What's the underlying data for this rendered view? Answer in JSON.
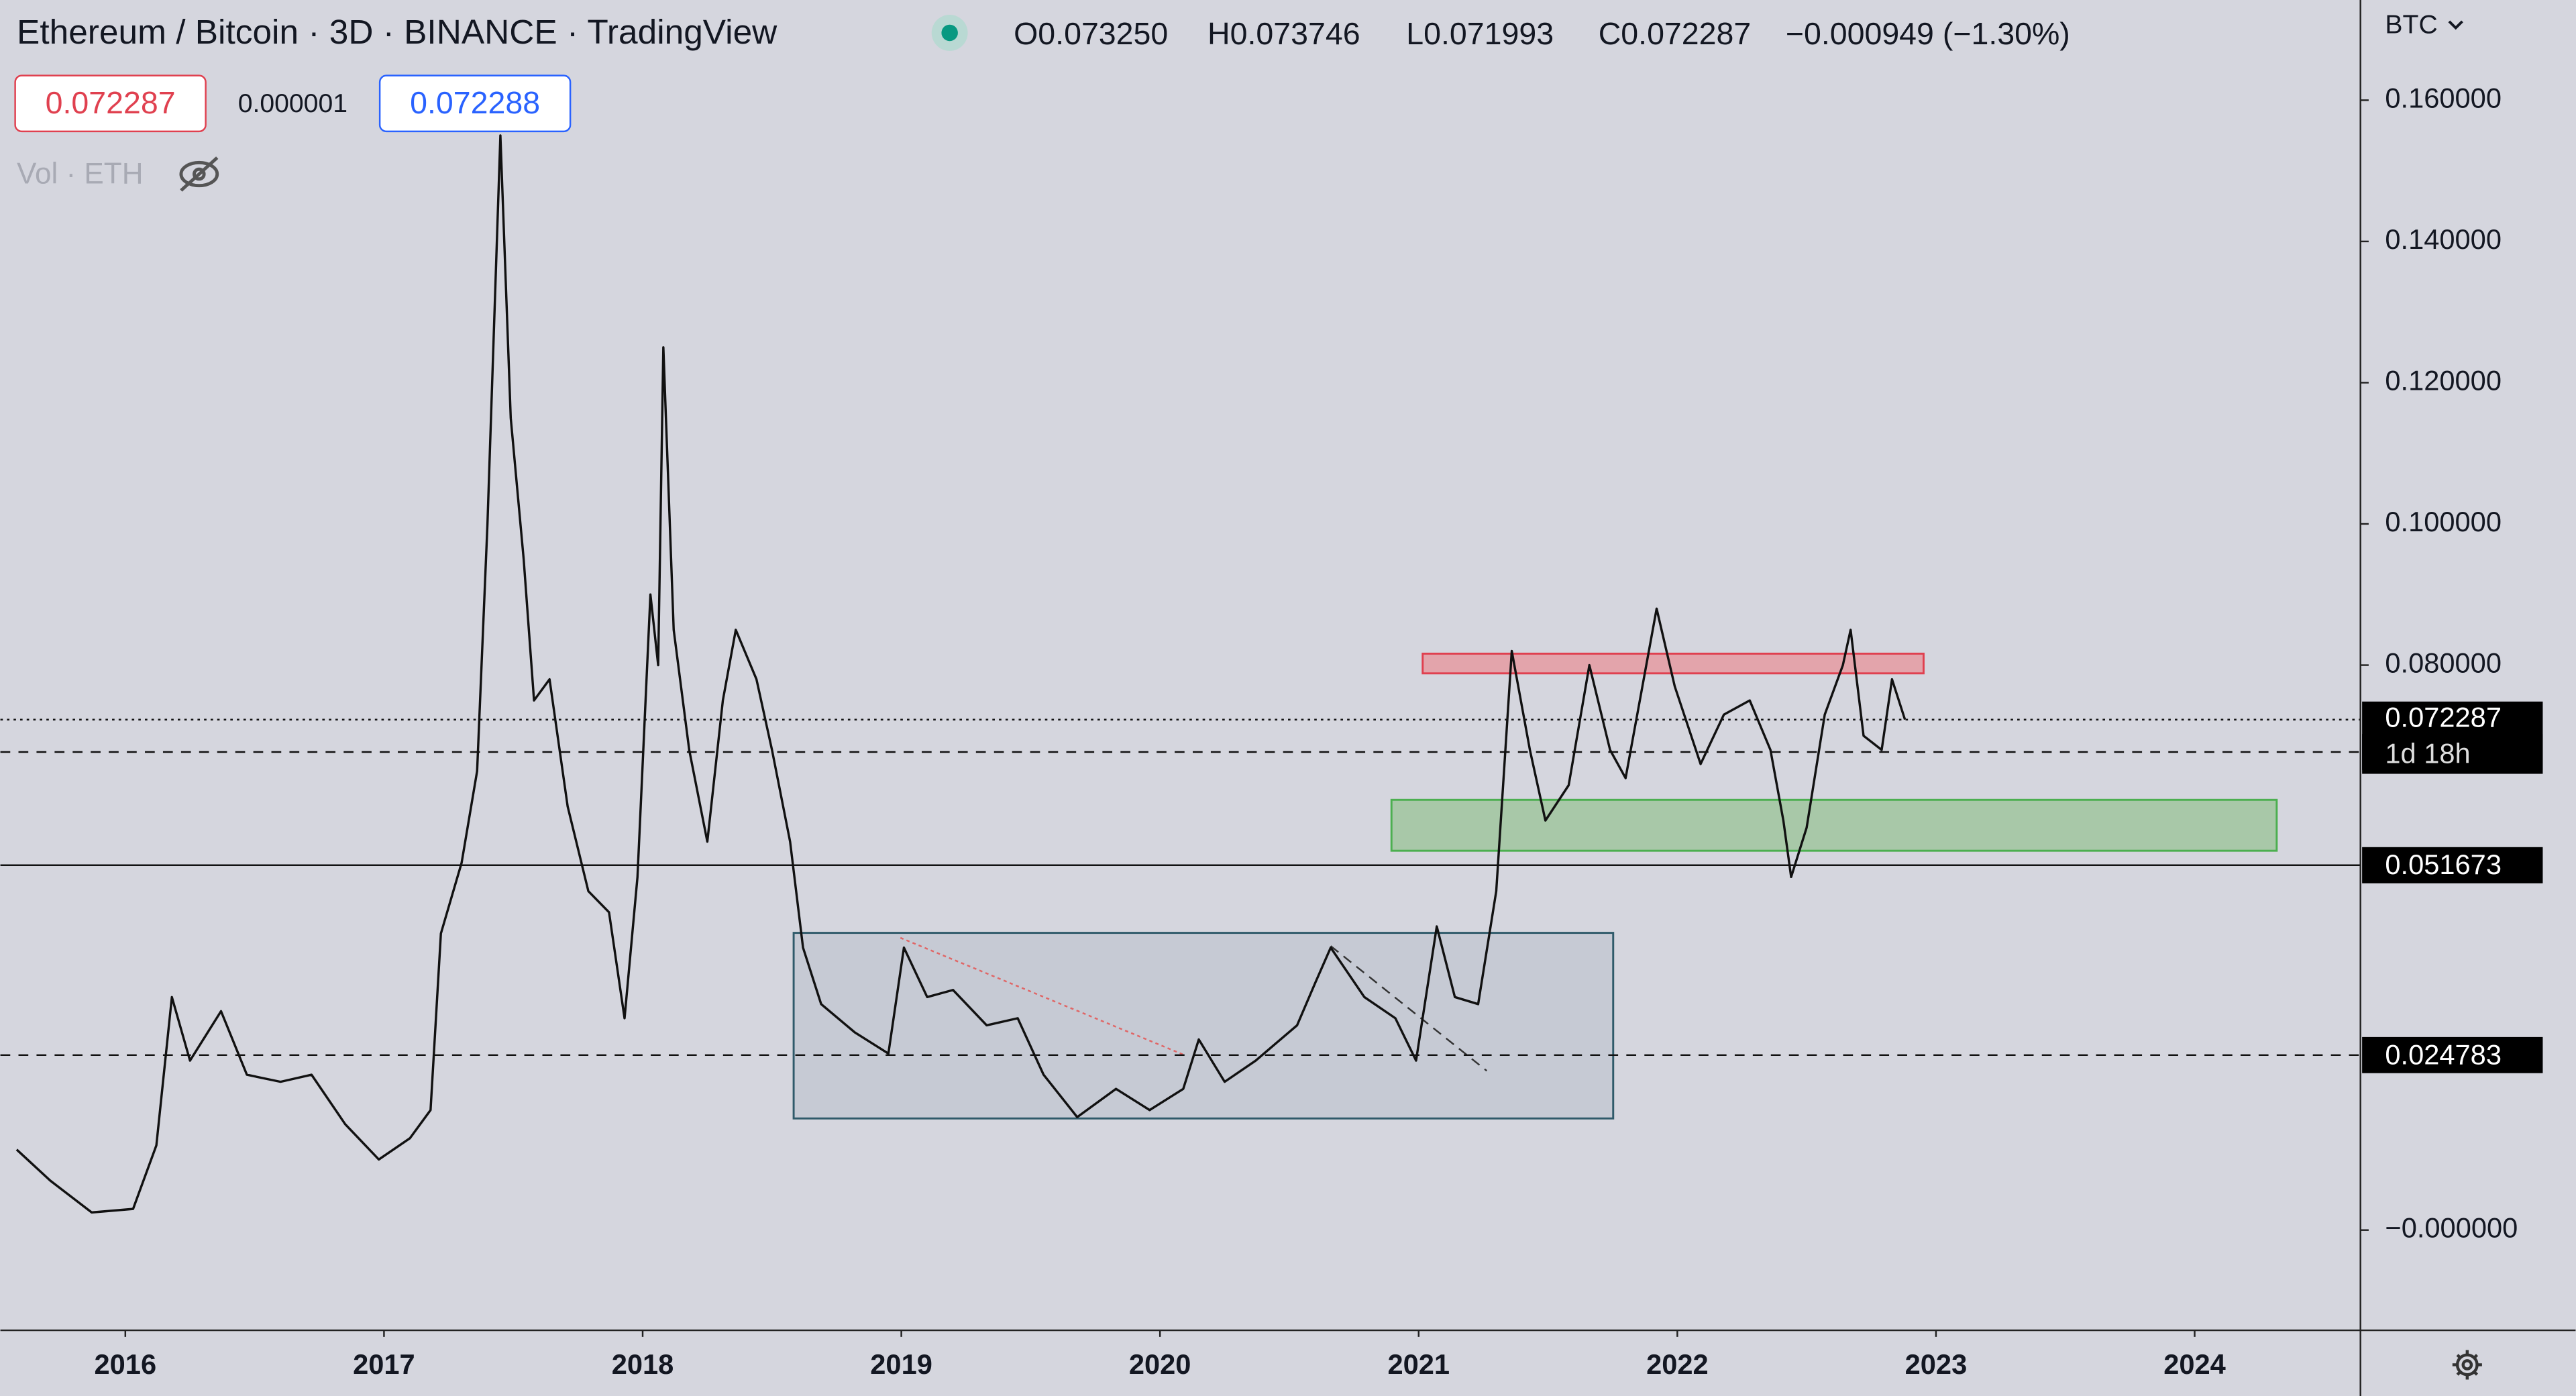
{
  "chart_data": {
    "type": "line",
    "title": "Ethereum / Bitcoin · 3D · BINANCE · TradingView",
    "ohlc": {
      "open": "O0.073250",
      "high": "H0.073746",
      "low": "L0.071993",
      "close": "C0.072287",
      "change": "−0.000949 (−1.30%)"
    },
    "order_panel": {
      "sell": "0.072287",
      "spread": "0.000001",
      "buy": "0.072288"
    },
    "volume_label": "Vol · ETH",
    "currency": "BTC",
    "xlim": [
      2015.517,
      2024.641
    ],
    "xticks": [
      2016,
      2017,
      2018,
      2019,
      2020,
      2021,
      2022,
      2023,
      2024
    ],
    "ylim": [
      -0.01419,
      0.17419
    ],
    "yticks": [
      {
        "value": 0.16,
        "label": "0.160000"
      },
      {
        "value": 0.14,
        "label": "0.140000"
      },
      {
        "value": 0.12,
        "label": "0.120000"
      },
      {
        "value": 0.1,
        "label": "0.100000"
      },
      {
        "value": 0.08,
        "label": "0.080000"
      },
      {
        "value": 0,
        "label": "−0.000000"
      }
    ],
    "last_price": {
      "value": 0.072287,
      "countdown": "1d 18h"
    },
    "levels": [
      0.067701,
      0.051673,
      0.024783
    ],
    "series": [
      {
        "name": "ETHBTC",
        "color": "#111111",
        "x": [
          2015.58,
          2015.71,
          2015.87,
          2016.03,
          2016.12,
          2016.18,
          2016.25,
          2016.37,
          2016.47,
          2016.6,
          2016.72,
          2016.85,
          2016.98,
          2017.1,
          2017.18,
          2017.22,
          2017.3,
          2017.36,
          2017.4,
          2017.45,
          2017.49,
          2017.54,
          2017.58,
          2017.64,
          2017.71,
          2017.79,
          2017.87,
          2017.93,
          2017.98,
          2018.03,
          2018.06,
          2018.08,
          2018.12,
          2018.18,
          2018.25,
          2018.31,
          2018.36,
          2018.44,
          2018.5,
          2018.57,
          2018.62,
          2018.69,
          2018.82,
          2018.95,
          2019.01,
          2019.1,
          2019.2,
          2019.33,
          2019.45,
          2019.55,
          2019.68,
          2019.83,
          2019.96,
          2020.09,
          2020.15,
          2020.25,
          2020.37,
          2020.53,
          2020.6,
          2020.66,
          2020.79,
          2020.91,
          2020.99,
          2021.07,
          2021.14,
          2021.23,
          2021.3,
          2021.33,
          2021.36,
          2021.43,
          2021.49,
          2021.58,
          2021.66,
          2021.74,
          2021.8,
          2021.87,
          2021.92,
          2021.99,
          2022.09,
          2022.18,
          2022.28,
          2022.36,
          2022.41,
          2022.44,
          2022.5,
          2022.57,
          2022.64,
          2022.67,
          2022.72,
          2022.79,
          2022.83,
          2022.88
        ],
        "values": [
          0.0114,
          0.007,
          0.0025,
          0.003,
          0.012,
          0.033,
          0.024,
          0.031,
          0.022,
          0.021,
          0.022,
          0.015,
          0.01,
          0.013,
          0.017,
          0.042,
          0.052,
          0.065,
          0.1,
          0.155,
          0.115,
          0.095,
          0.075,
          0.078,
          0.06,
          0.048,
          0.045,
          0.03,
          0.05,
          0.09,
          0.08,
          0.125,
          0.085,
          0.068,
          0.055,
          0.075,
          0.085,
          0.078,
          0.068,
          0.055,
          0.04,
          0.032,
          0.028,
          0.025,
          0.04,
          0.033,
          0.034,
          0.029,
          0.03,
          0.022,
          0.016,
          0.02,
          0.017,
          0.02,
          0.027,
          0.021,
          0.024,
          0.029,
          0.035,
          0.04,
          0.033,
          0.03,
          0.024,
          0.043,
          0.033,
          0.032,
          0.048,
          0.065,
          0.082,
          0.068,
          0.058,
          0.063,
          0.08,
          0.068,
          0.064,
          0.078,
          0.088,
          0.077,
          0.066,
          0.073,
          0.075,
          0.068,
          0.058,
          0.05,
          0.057,
          0.073,
          0.08,
          0.085,
          0.07,
          0.068,
          0.078,
          0.0723
        ]
      }
    ]
  }
}
